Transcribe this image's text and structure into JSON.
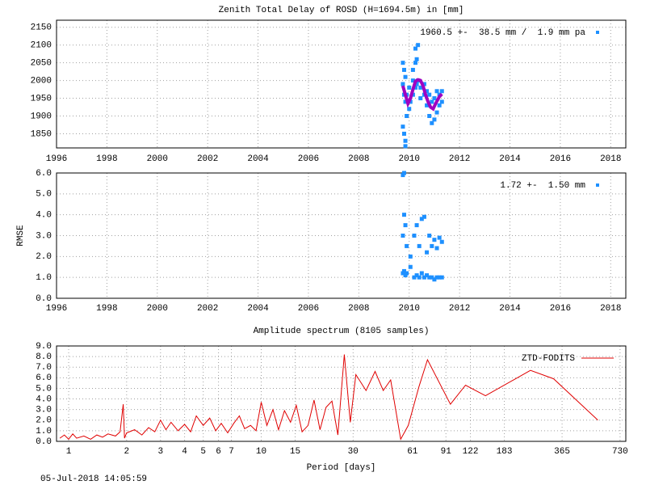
{
  "chart_data": [
    {
      "type": "scatter",
      "title": "Zenith Total Delay of ROSD (H=1694.5m) in [mm]",
      "xlim": [
        1996,
        2018.6
      ],
      "xticks": [
        1996,
        1998,
        2000,
        2002,
        2004,
        2006,
        2008,
        2010,
        2012,
        2014,
        2016,
        2018
      ],
      "ylim": [
        1810,
        2170
      ],
      "yticks": [
        1850,
        1900,
        1950,
        2000,
        2050,
        2100,
        2150
      ],
      "grid": true,
      "legend": "top right",
      "series": [
        {
          "name": "1960.5 +-  38.5 mm /  1.9 mm pa",
          "color": "#1e90ff",
          "x": [
            2009.75,
            2009.75,
            2009.75,
            2009.8,
            2009.8,
            2009.8,
            2009.85,
            2009.85,
            2009.85,
            2009.85,
            2009.9,
            2009.9,
            2010.0,
            2010.0,
            2010.05,
            2010.15,
            2010.15,
            2010.15,
            2010.25,
            2010.25,
            2010.25,
            2010.3,
            2010.3,
            2010.35,
            2010.35,
            2010.45,
            2010.45,
            2010.6,
            2010.6,
            2010.7,
            2010.7,
            2010.8,
            2010.8,
            2010.9,
            2010.9,
            2011.0,
            2011.0,
            2011.1,
            2011.1,
            2011.2,
            2011.2,
            2011.3,
            2011.3
          ],
          "values": [
            1870,
            1990,
            2050,
            1850,
            1960,
            2030,
            1815,
            1830,
            1940,
            2010,
            1900,
            1960,
            1920,
            1980,
            1940,
            1960,
            2000,
            2030,
            1980,
            2050,
            2090,
            1990,
            2060,
            2000,
            2100,
            1950,
            1980,
            1960,
            1990,
            1930,
            1970,
            1900,
            1960,
            1880,
            1940,
            1890,
            1950,
            1910,
            1970,
            1930,
            1960,
            1940,
            1970
          ]
        },
        {
          "color": "#a000c0",
          "style": "line",
          "x": [
            2009.75,
            2009.85,
            2009.95,
            2010.05,
            2010.15,
            2010.25,
            2010.35,
            2010.45,
            2010.55,
            2010.65,
            2010.75,
            2010.85,
            2010.95,
            2011.05,
            2011.2,
            2011.3
          ],
          "values": [
            1985,
            1960,
            1935,
            1950,
            1975,
            1998,
            2002,
            2000,
            1985,
            1960,
            1940,
            1925,
            1920,
            1935,
            1955,
            1962
          ]
        }
      ]
    },
    {
      "type": "scatter",
      "ylabel": "RMSE",
      "xlim": [
        1996,
        2018.6
      ],
      "xticks": [
        1996,
        1998,
        2000,
        2002,
        2004,
        2006,
        2008,
        2010,
        2012,
        2014,
        2016,
        2018
      ],
      "ylim": [
        0,
        6
      ],
      "yticks": [
        {
          "value": 0,
          "label": "0.0"
        },
        {
          "value": 1,
          "label": "1.0"
        },
        {
          "value": 2,
          "label": "2.0"
        },
        {
          "value": 3,
          "label": "3.0"
        },
        {
          "value": 4,
          "label": "4.0"
        },
        {
          "value": 5,
          "label": "5.0"
        },
        {
          "value": 6,
          "label": "6.0"
        }
      ],
      "grid": true,
      "legend": "top right",
      "series": [
        {
          "name": "1.72 +-  1.50 mm",
          "color": "#1e90ff",
          "x": [
            2009.75,
            2009.75,
            2009.75,
            2009.8,
            2009.8,
            2009.8,
            2009.85,
            2009.85,
            2009.9,
            2009.9,
            2010.05,
            2010.05,
            2010.2,
            2010.2,
            2010.3,
            2010.3,
            2010.4,
            2010.4,
            2010.5,
            2010.5,
            2010.6,
            2010.6,
            2010.7,
            2010.7,
            2010.8,
            2010.8,
            2010.9,
            2010.9,
            2011.0,
            2011.0,
            2011.1,
            2011.1,
            2011.2,
            2011.2,
            2011.3,
            2011.3
          ],
          "values": [
            5.9,
            3.0,
            1.2,
            6.0,
            4.0,
            1.3,
            3.5,
            1.1,
            2.5,
            1.2,
            1.5,
            2.0,
            1.0,
            3.0,
            1.1,
            3.5,
            1.0,
            2.5,
            1.2,
            3.8,
            1.0,
            3.9,
            1.1,
            2.2,
            1.0,
            3.0,
            1.0,
            2.5,
            0.9,
            2.8,
            1.0,
            2.4,
            1.0,
            2.9,
            1.0,
            2.7
          ]
        }
      ]
    },
    {
      "type": "line",
      "title": "Amplitude spectrum (8105 samples)",
      "xlabel": "Period [days]",
      "xscale": "log",
      "xlim": [
        0.865,
        782
      ],
      "xticks": [
        1,
        2,
        3,
        4,
        5,
        6,
        7,
        10,
        15,
        30,
        61,
        91,
        122,
        183,
        365,
        730
      ],
      "ylim": [
        0,
        9
      ],
      "yticks": [
        {
          "value": 0,
          "label": "0.0"
        },
        {
          "value": 1,
          "label": "1.0"
        },
        {
          "value": 2,
          "label": "2.0"
        },
        {
          "value": 3,
          "label": "3.0"
        },
        {
          "value": 4,
          "label": "4.0"
        },
        {
          "value": 5,
          "label": "5.0"
        },
        {
          "value": 6,
          "label": "6.0"
        },
        {
          "value": 7,
          "label": "7.0"
        },
        {
          "value": 8,
          "label": "8.0"
        },
        {
          "value": 9,
          "label": "9.0"
        }
      ],
      "grid": true,
      "legend": "top right",
      "series": [
        {
          "name": "ZTD-FODITS",
          "color": "#e00000",
          "style": "line",
          "x": [
            0.9,
            0.95,
            1.0,
            1.05,
            1.1,
            1.2,
            1.3,
            1.4,
            1.5,
            1.6,
            1.75,
            1.85,
            1.92,
            1.95,
            2.0,
            2.2,
            2.4,
            2.6,
            2.8,
            3.0,
            3.2,
            3.4,
            3.7,
            4.0,
            4.3,
            4.6,
            5.0,
            5.4,
            5.8,
            6.2,
            6.7,
            7.2,
            7.7,
            8.2,
            8.8,
            9.4,
            10.0,
            10.7,
            11.5,
            12.3,
            13.2,
            14.2,
            15.2,
            16.3,
            17.5,
            18.8,
            20.2,
            21.7,
            23.3,
            25,
            27,
            29,
            31,
            35,
            39,
            43,
            47,
            53,
            58,
            66,
            73,
            96,
            115,
            146,
            250,
            330,
            560
          ],
          "values": [
            0.3,
            0.6,
            0.2,
            0.7,
            0.3,
            0.5,
            0.2,
            0.6,
            0.4,
            0.7,
            0.5,
            0.9,
            3.5,
            0.3,
            0.8,
            1.1,
            0.6,
            1.3,
            0.9,
            2.0,
            1.1,
            1.8,
            1.0,
            1.6,
            0.9,
            2.4,
            1.5,
            2.2,
            1.0,
            1.7,
            0.8,
            1.7,
            2.4,
            1.2,
            1.5,
            1.0,
            3.7,
            1.5,
            3.0,
            1.1,
            2.9,
            1.8,
            3.4,
            0.9,
            1.5,
            3.9,
            1.1,
            3.2,
            3.8,
            0.6,
            8.2,
            1.8,
            6.3,
            4.8,
            6.6,
            4.8,
            5.8,
            0.2,
            1.5,
            5.2,
            7.7,
            3.5,
            5.3,
            4.3,
            6.7,
            5.9,
            2.0
          ]
        }
      ]
    }
  ],
  "timestamp": "05-Jul-2018 14:05:59"
}
